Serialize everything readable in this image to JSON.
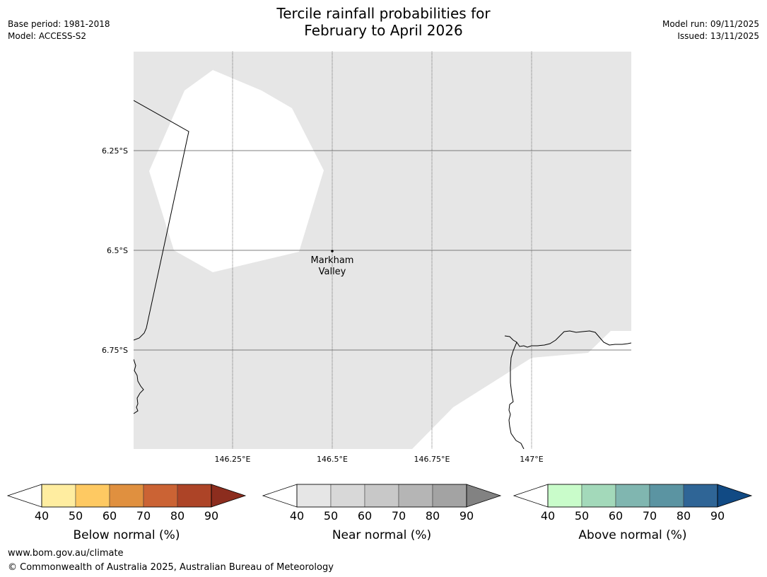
{
  "header": {
    "title_lines": [
      "Tercile rainfall probabilities for",
      "February to April 2026"
    ],
    "base_period": "Base period: 1981-2018",
    "model": "Model: ACCESS-S2",
    "model_run": "Model run: 09/11/2025",
    "issued": "Issued: 13/11/2025"
  },
  "map": {
    "lat_labels": [
      "6.25°S",
      "6.5°S",
      "6.75°S"
    ],
    "lon_labels": [
      "146.25°E",
      "146.5°E",
      "146.75°E",
      "147°E"
    ],
    "place": {
      "name_lines": [
        "Markham",
        "Valley"
      ]
    },
    "colors": {
      "no_data": "#e6e6e6",
      "land_no_shade": "#ffffff",
      "coast": "#000000",
      "grid": "#555555"
    }
  },
  "legends": [
    {
      "label": "Below normal (%)",
      "ticks": [
        "40",
        "50",
        "60",
        "70",
        "80",
        "90"
      ],
      "colors": [
        "#ffeda0",
        "#fec962",
        "#e0903f",
        "#cb6334",
        "#ad4427"
      ],
      "extend_color": "#8c2d1e"
    },
    {
      "label": "Near normal (%)",
      "ticks": [
        "40",
        "50",
        "60",
        "70",
        "80",
        "90"
      ],
      "colors": [
        "#e6e6e6",
        "#d8d8d8",
        "#c8c8c8",
        "#b5b5b5",
        "#a3a3a3"
      ],
      "extend_color": "#828282"
    },
    {
      "label": "Above normal (%)",
      "ticks": [
        "40",
        "50",
        "60",
        "70",
        "80",
        "90"
      ],
      "colors": [
        "#c9fcca",
        "#a3d9ba",
        "#80b6b0",
        "#5b94a2",
        "#2f6596"
      ],
      "extend_color": "#114a84"
    }
  ],
  "footer": {
    "url": "www.bom.gov.au/climate",
    "copyright": "© Commonwealth of Australia 2025, Australian Bureau of Meteorology"
  }
}
